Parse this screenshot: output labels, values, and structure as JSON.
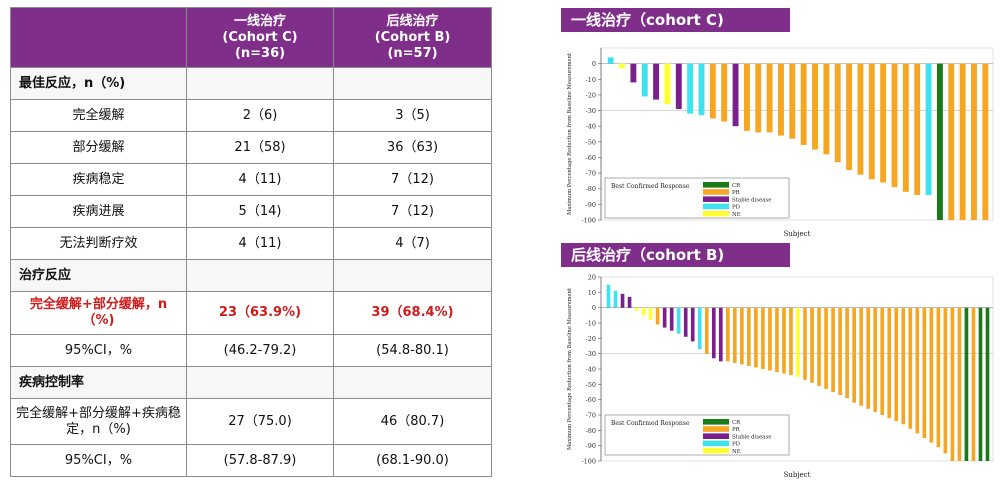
{
  "table": {
    "header": {
      "col1": [
        "一线治疗",
        "(Cohort C)",
        "(n=36)"
      ],
      "col2": [
        "后线治疗",
        "(Cohort B)",
        "(n=57)"
      ]
    },
    "rows": [
      {
        "type": "section",
        "label": "最佳反应，n（%)",
        "c1": "",
        "c2": ""
      },
      {
        "type": "row",
        "label": "完全缓解",
        "c1": "2（6)",
        "c2": "3（5)"
      },
      {
        "type": "row",
        "label": "部分缓解",
        "c1": "21（58)",
        "c2": "36（63)"
      },
      {
        "type": "row",
        "label": "疾病稳定",
        "c1": "4（11)",
        "c2": "7（12)"
      },
      {
        "type": "row",
        "label": "疾病进展",
        "c1": "5（14)",
        "c2": "7（12)"
      },
      {
        "type": "row",
        "label": "无法判断疗效",
        "c1": "4（11)",
        "c2": "4（7)"
      },
      {
        "type": "section",
        "label": "治疗反应",
        "c1": "",
        "c2": ""
      },
      {
        "type": "red",
        "label": "完全缓解+部分缓解，n（%)",
        "c1": "23（63.9%)",
        "c2": "39（68.4%)"
      },
      {
        "type": "row",
        "label": "95%CI，%",
        "c1": "(46.2-79.2)",
        "c2": "(54.8-80.1)"
      },
      {
        "type": "section",
        "label": "疾病控制率",
        "c1": "",
        "c2": ""
      },
      {
        "type": "tall",
        "label": "完全缓解+部分缓解+疾病稳定，n（%)",
        "c1": "27（75.0)",
        "c2": "46（80.7)"
      },
      {
        "type": "row",
        "label": "95%CI，%",
        "c1": "(57.8-87.9)",
        "c2": "(68.1-90.0)"
      }
    ]
  },
  "colors": {
    "header_bg": "#7f2f8a",
    "CR": "#1a7a1a",
    "PR": "#f5a623",
    "SD": "#7a1f8c",
    "PD": "#3fe3ef",
    "NE": "#ffff33",
    "highlight_red": "#d11a1a"
  },
  "chart_data": [
    {
      "type": "bar",
      "title": "一线治疗（cohort C)",
      "xlabel": "Subject",
      "ylabel": "Maximum Percentage Reduction from Baseline Measurement",
      "ylim": [
        -100,
        10
      ],
      "yticks": [
        0,
        -10,
        -20,
        -30,
        -40,
        -50,
        -60,
        -70,
        -80,
        -90,
        -100
      ],
      "reference_line": -30,
      "legend_title": "Best Confirmed Response",
      "legend": [
        {
          "key": "CR",
          "label": "CR"
        },
        {
          "key": "PR",
          "label": "PR"
        },
        {
          "key": "SD",
          "label": "Stable disease"
        },
        {
          "key": "PD",
          "label": "PD"
        },
        {
          "key": "NE",
          "label": "NE"
        }
      ],
      "bars": [
        {
          "v": 4,
          "r": "PD"
        },
        {
          "v": -3,
          "r": "NE"
        },
        {
          "v": -12,
          "r": "SD"
        },
        {
          "v": -21,
          "r": "PD"
        },
        {
          "v": -23,
          "r": "SD"
        },
        {
          "v": -26,
          "r": "NE"
        },
        {
          "v": -29,
          "r": "SD"
        },
        {
          "v": -32,
          "r": "PD"
        },
        {
          "v": -33,
          "r": "PD"
        },
        {
          "v": -35,
          "r": "PR"
        },
        {
          "v": -37,
          "r": "PR"
        },
        {
          "v": -40,
          "r": "SD"
        },
        {
          "v": -43,
          "r": "PR"
        },
        {
          "v": -44,
          "r": "PR"
        },
        {
          "v": -44,
          "r": "PR"
        },
        {
          "v": -46,
          "r": "PR"
        },
        {
          "v": -48,
          "r": "PR"
        },
        {
          "v": -52,
          "r": "PR"
        },
        {
          "v": -55,
          "r": "PR"
        },
        {
          "v": -58,
          "r": "PR"
        },
        {
          "v": -63,
          "r": "PR"
        },
        {
          "v": -68,
          "r": "PR"
        },
        {
          "v": -71,
          "r": "PR"
        },
        {
          "v": -74,
          "r": "PR"
        },
        {
          "v": -76,
          "r": "PR"
        },
        {
          "v": -79,
          "r": "PR"
        },
        {
          "v": -82,
          "r": "PR"
        },
        {
          "v": -84,
          "r": "PR"
        },
        {
          "v": -84,
          "r": "PD"
        },
        {
          "v": -100,
          "r": "CR"
        },
        {
          "v": -100,
          "r": "PR"
        },
        {
          "v": -100,
          "r": "PR"
        },
        {
          "v": -100,
          "r": "PR"
        },
        {
          "v": -100,
          "r": "PR"
        }
      ]
    },
    {
      "type": "bar",
      "title": "后线治疗（cohort B)",
      "xlabel": "Subject",
      "ylabel": "Maximum Percentage Reduction from Baseline Measurement",
      "ylim": [
        -100,
        20
      ],
      "yticks": [
        20,
        10,
        0,
        -10,
        -20,
        -30,
        -40,
        -50,
        -60,
        -70,
        -80,
        -90,
        -100
      ],
      "reference_line": -30,
      "legend_title": "Best Confirmed Response",
      "legend": [
        {
          "key": "CR",
          "label": "CR"
        },
        {
          "key": "PR",
          "label": "PR"
        },
        {
          "key": "SD",
          "label": "Stable disease"
        },
        {
          "key": "PD",
          "label": "PD"
        },
        {
          "key": "NE",
          "label": "NE"
        }
      ],
      "bars": [
        {
          "v": 15,
          "r": "PD"
        },
        {
          "v": 11,
          "r": "PD"
        },
        {
          "v": 9,
          "r": "SD"
        },
        {
          "v": 7,
          "r": "SD"
        },
        {
          "v": -2,
          "r": "NE"
        },
        {
          "v": -5,
          "r": "NE"
        },
        {
          "v": -8,
          "r": "NE"
        },
        {
          "v": -11,
          "r": "PR"
        },
        {
          "v": -13,
          "r": "SD"
        },
        {
          "v": -15,
          "r": "SD"
        },
        {
          "v": -17,
          "r": "PD"
        },
        {
          "v": -19,
          "r": "SD"
        },
        {
          "v": -22,
          "r": "SD"
        },
        {
          "v": -27,
          "r": "PD"
        },
        {
          "v": -30,
          "r": "PR"
        },
        {
          "v": -33,
          "r": "SD"
        },
        {
          "v": -35,
          "r": "SD"
        },
        {
          "v": -35,
          "r": "PR"
        },
        {
          "v": -36,
          "r": "PR"
        },
        {
          "v": -37,
          "r": "PR"
        },
        {
          "v": -38,
          "r": "PR"
        },
        {
          "v": -39,
          "r": "PR"
        },
        {
          "v": -40,
          "r": "PR"
        },
        {
          "v": -41,
          "r": "PR"
        },
        {
          "v": -42,
          "r": "PR"
        },
        {
          "v": -43,
          "r": "PR"
        },
        {
          "v": -44,
          "r": "PR"
        },
        {
          "v": -45,
          "r": "NE"
        },
        {
          "v": -47,
          "r": "PR"
        },
        {
          "v": -49,
          "r": "PR"
        },
        {
          "v": -51,
          "r": "PR"
        },
        {
          "v": -53,
          "r": "PR"
        },
        {
          "v": -55,
          "r": "PR"
        },
        {
          "v": -57,
          "r": "PR"
        },
        {
          "v": -59,
          "r": "PR"
        },
        {
          "v": -62,
          "r": "PR"
        },
        {
          "v": -64,
          "r": "PR"
        },
        {
          "v": -66,
          "r": "PR"
        },
        {
          "v": -68,
          "r": "PR"
        },
        {
          "v": -70,
          "r": "PR"
        },
        {
          "v": -72,
          "r": "PR"
        },
        {
          "v": -74,
          "r": "PR"
        },
        {
          "v": -76,
          "r": "PR"
        },
        {
          "v": -79,
          "r": "PR"
        },
        {
          "v": -82,
          "r": "PR"
        },
        {
          "v": -85,
          "r": "PR"
        },
        {
          "v": -88,
          "r": "PR"
        },
        {
          "v": -91,
          "r": "PR"
        },
        {
          "v": -95,
          "r": "PR"
        },
        {
          "v": -100,
          "r": "PR"
        },
        {
          "v": -100,
          "r": "PR"
        },
        {
          "v": -100,
          "r": "CR"
        },
        {
          "v": -100,
          "r": "PR"
        },
        {
          "v": -100,
          "r": "CR"
        },
        {
          "v": -100,
          "r": "CR"
        }
      ]
    }
  ]
}
